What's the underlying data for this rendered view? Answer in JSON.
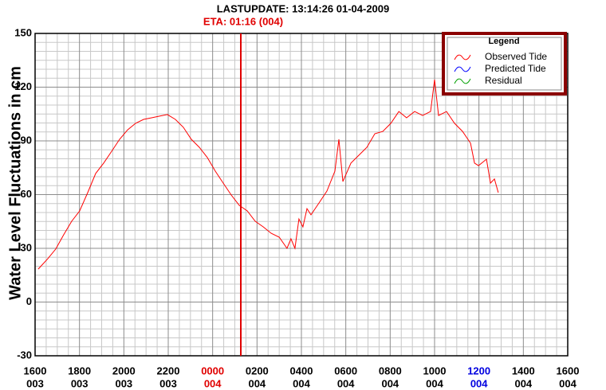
{
  "chart_data": {
    "type": "line",
    "title": "LASTUPDATE: 13:14:26  01-04-2009",
    "subtitle": "ETA: 01:16 (004)",
    "subtitle_color": "#e00000",
    "y_label": "Water Level Fluctuations in cm",
    "legend_title": "Legend",
    "legend_position": "upper right",
    "grid": true,
    "ylim": [
      -30,
      150
    ],
    "yticks": [
      -30,
      0,
      30,
      60,
      90,
      120,
      150
    ],
    "xlim": [
      0,
      24
    ],
    "xticks": [
      {
        "value": 0,
        "label": "1600",
        "day": "003"
      },
      {
        "value": 2,
        "label": "1800",
        "day": "003"
      },
      {
        "value": 4,
        "label": "2000",
        "day": "003"
      },
      {
        "value": 6,
        "label": "2200",
        "day": "003"
      },
      {
        "value": 8,
        "label": "0000",
        "day": "004",
        "color": "#e00000"
      },
      {
        "value": 10,
        "label": "0200",
        "day": "004"
      },
      {
        "value": 12,
        "label": "0400",
        "day": "004"
      },
      {
        "value": 14,
        "label": "0600",
        "day": "004"
      },
      {
        "value": 16,
        "label": "0800",
        "day": "004"
      },
      {
        "value": 18,
        "label": "1000",
        "day": "004"
      },
      {
        "value": 20,
        "label": "1200",
        "day": "004",
        "color": "#0000e0"
      },
      {
        "value": 22,
        "label": "1400",
        "day": "004"
      },
      {
        "value": 24,
        "label": "1600",
        "day": "004"
      }
    ],
    "eta_line": {
      "x": 9.27,
      "color": "#e00000"
    },
    "series": [
      {
        "name": "Observed Tide",
        "color": "#ff0000",
        "x": [
          0.14,
          0.57,
          0.93,
          1.29,
          1.65,
          2.01,
          2.37,
          2.73,
          3.09,
          3.45,
          3.81,
          4.17,
          4.53,
          4.89,
          5.25,
          5.61,
          5.96,
          6.32,
          6.68,
          7.04,
          7.4,
          7.76,
          8.12,
          8.48,
          8.84,
          9.2,
          9.56,
          9.92,
          10.28,
          10.64,
          11.0,
          11.35,
          11.53,
          11.71,
          11.89,
          12.07,
          12.25,
          12.43,
          12.79,
          13.15,
          13.51,
          13.69,
          13.87,
          14.23,
          14.59,
          14.95,
          15.31,
          15.67,
          16.03,
          16.39,
          16.74,
          17.1,
          17.46,
          17.82,
          18.0,
          18.18,
          18.54,
          18.9,
          19.26,
          19.62,
          19.8,
          19.98,
          20.34,
          20.52,
          20.7,
          20.87
        ],
        "values": [
          18.4,
          24.2,
          29.6,
          37.6,
          45.1,
          50.9,
          61.1,
          71.8,
          77.6,
          84.2,
          90.9,
          96.2,
          99.8,
          102,
          102.9,
          103.8,
          104.7,
          102,
          97.6,
          90.9,
          86.4,
          80.7,
          73.1,
          66.4,
          59.8,
          54,
          50.9,
          45.1,
          42,
          38.4,
          36.2,
          30,
          35.3,
          30,
          46.4,
          42,
          52.2,
          48.7,
          55.3,
          62,
          73.1,
          90.9,
          67.3,
          77.6,
          82,
          86.4,
          94,
          95.3,
          99.8,
          106.4,
          102.9,
          106.4,
          104.2,
          106.4,
          124.2,
          104.2,
          106.4,
          99.8,
          95.3,
          88.7,
          77.6,
          76.2,
          79.8,
          66.4,
          68.7,
          61.1
        ]
      },
      {
        "name": "Predicted Tide",
        "color": "#0000ff",
        "x": [],
        "values": []
      },
      {
        "name": "Residual",
        "color": "#00a000",
        "x": [],
        "values": []
      }
    ]
  }
}
